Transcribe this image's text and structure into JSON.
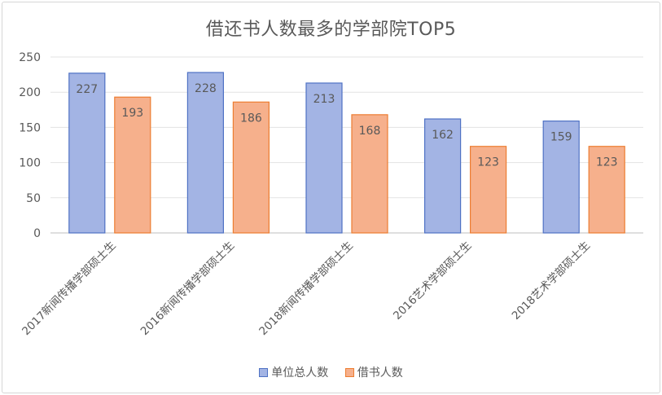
{
  "chart_data": {
    "type": "bar",
    "title": "借还书人数最多的学部院TOP5",
    "xlabel": "",
    "ylabel": "",
    "categories": [
      "2017新闻传播学部硕士生",
      "2016新闻传播学部硕士生",
      "2018新闻传播学部硕士生",
      "2016艺术学部硕士生",
      "2018艺术学部硕士生"
    ],
    "series": [
      {
        "name": "单位总人数",
        "values": [
          227,
          228,
          213,
          162,
          159
        ],
        "fill": "#a3b4e4",
        "stroke": "#4f72c4"
      },
      {
        "name": "借书人数",
        "values": [
          193,
          186,
          168,
          123,
          123
        ],
        "fill": "#f6b08c",
        "stroke": "#ed7d31"
      }
    ],
    "ylim": [
      0,
      250
    ],
    "yticks": [
      0,
      50,
      100,
      150,
      200,
      250
    ],
    "grid": true,
    "legend_position": "bottom",
    "data_labels": true
  }
}
